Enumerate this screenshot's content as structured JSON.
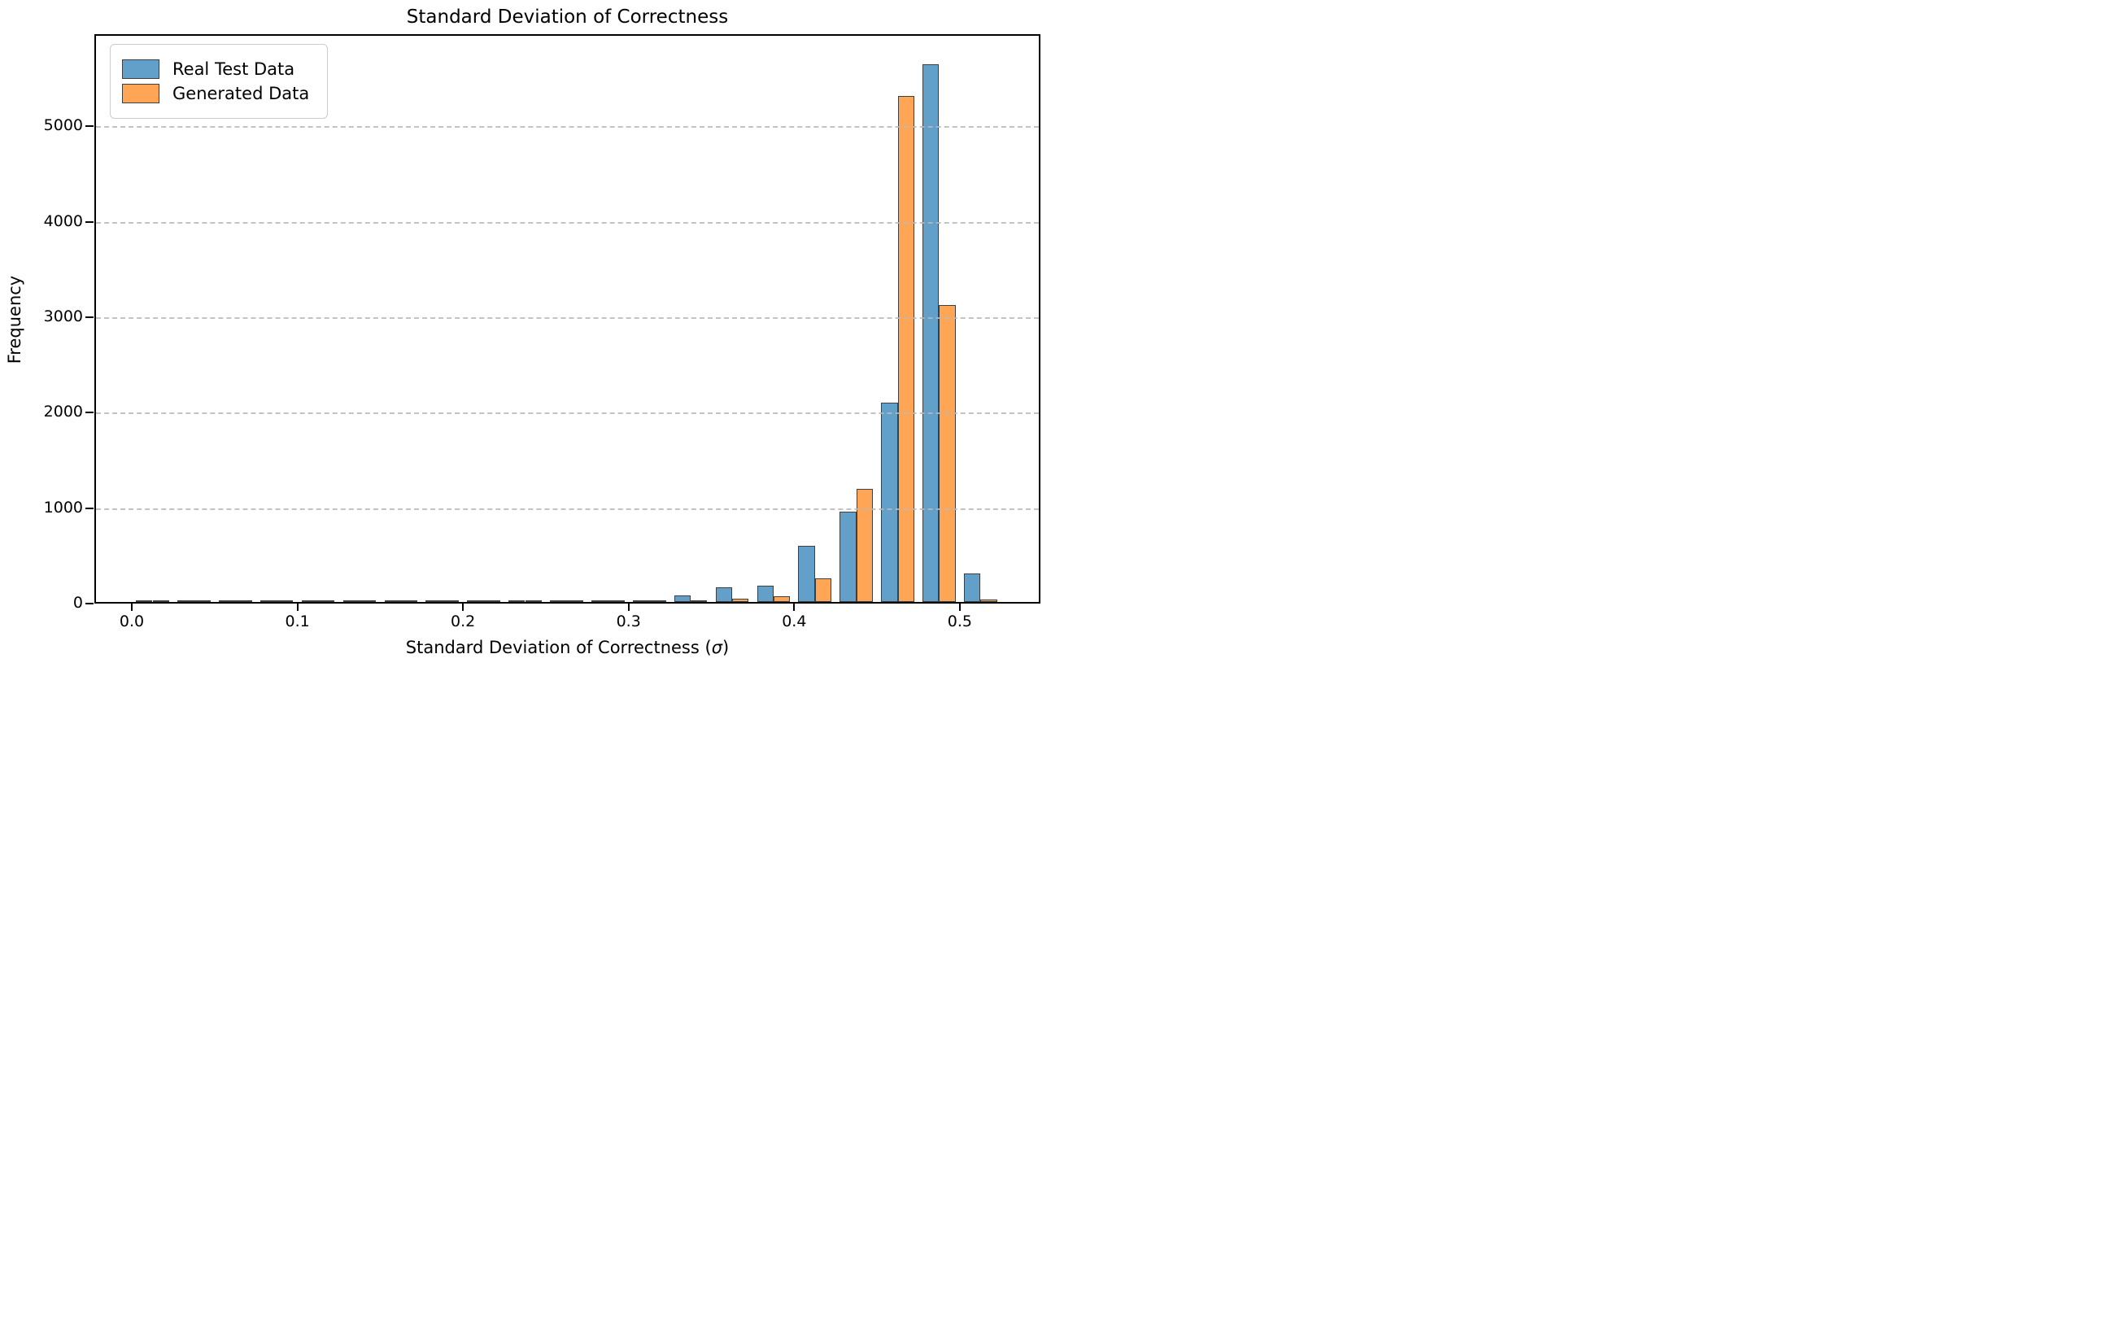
{
  "chart_data": {
    "type": "bar",
    "subtype": "histogram-grouped",
    "title": "Standard Deviation of Correctness",
    "xlabel_prefix": "Standard Deviation of Correctness (",
    "sigma": "σ",
    "xlabel_suffix": ")",
    "ylabel": "Frequency",
    "bin_width": 0.025,
    "bin_edges": [
      0.0,
      0.025,
      0.05,
      0.075,
      0.1,
      0.125,
      0.15,
      0.175,
      0.2,
      0.225,
      0.25,
      0.275,
      0.3,
      0.325,
      0.35,
      0.375,
      0.4,
      0.425,
      0.45,
      0.475,
      0.5
    ],
    "series": [
      {
        "name": "Real Test Data",
        "color": "#62A0CA",
        "values": [
          15,
          6,
          6,
          6,
          5,
          4,
          4,
          9,
          4,
          10,
          8,
          20,
          20,
          70,
          155,
          175,
          590,
          945,
          2085,
          5630,
          300
        ]
      },
      {
        "name": "Generated Data",
        "color": "#FFA556",
        "values": [
          5,
          5,
          4,
          4,
          4,
          3,
          3,
          4,
          3,
          4,
          4,
          4,
          8,
          15,
          35,
          60,
          250,
          1185,
          5300,
          3110,
          30
        ]
      }
    ],
    "bar_edge_color": "#3f3f3f",
    "x_ticks": [
      0.0,
      0.1,
      0.2,
      0.3,
      0.4,
      0.5
    ],
    "x_tick_labels": [
      "0.0",
      "0.1",
      "0.2",
      "0.3",
      "0.4",
      "0.5"
    ],
    "y_ticks": [
      0,
      1000,
      2000,
      3000,
      4000,
      5000
    ],
    "y_tick_labels": [
      "0",
      "1000",
      "2000",
      "3000",
      "4000",
      "5000"
    ],
    "xlim": [
      -0.0226,
      0.5487
    ],
    "ylim": [
      0,
      5966
    ],
    "grid": {
      "axis": "y",
      "style": "dashed",
      "color": "#b9b9b9",
      "above_bars": true
    },
    "legend": {
      "position": "upper left"
    }
  }
}
